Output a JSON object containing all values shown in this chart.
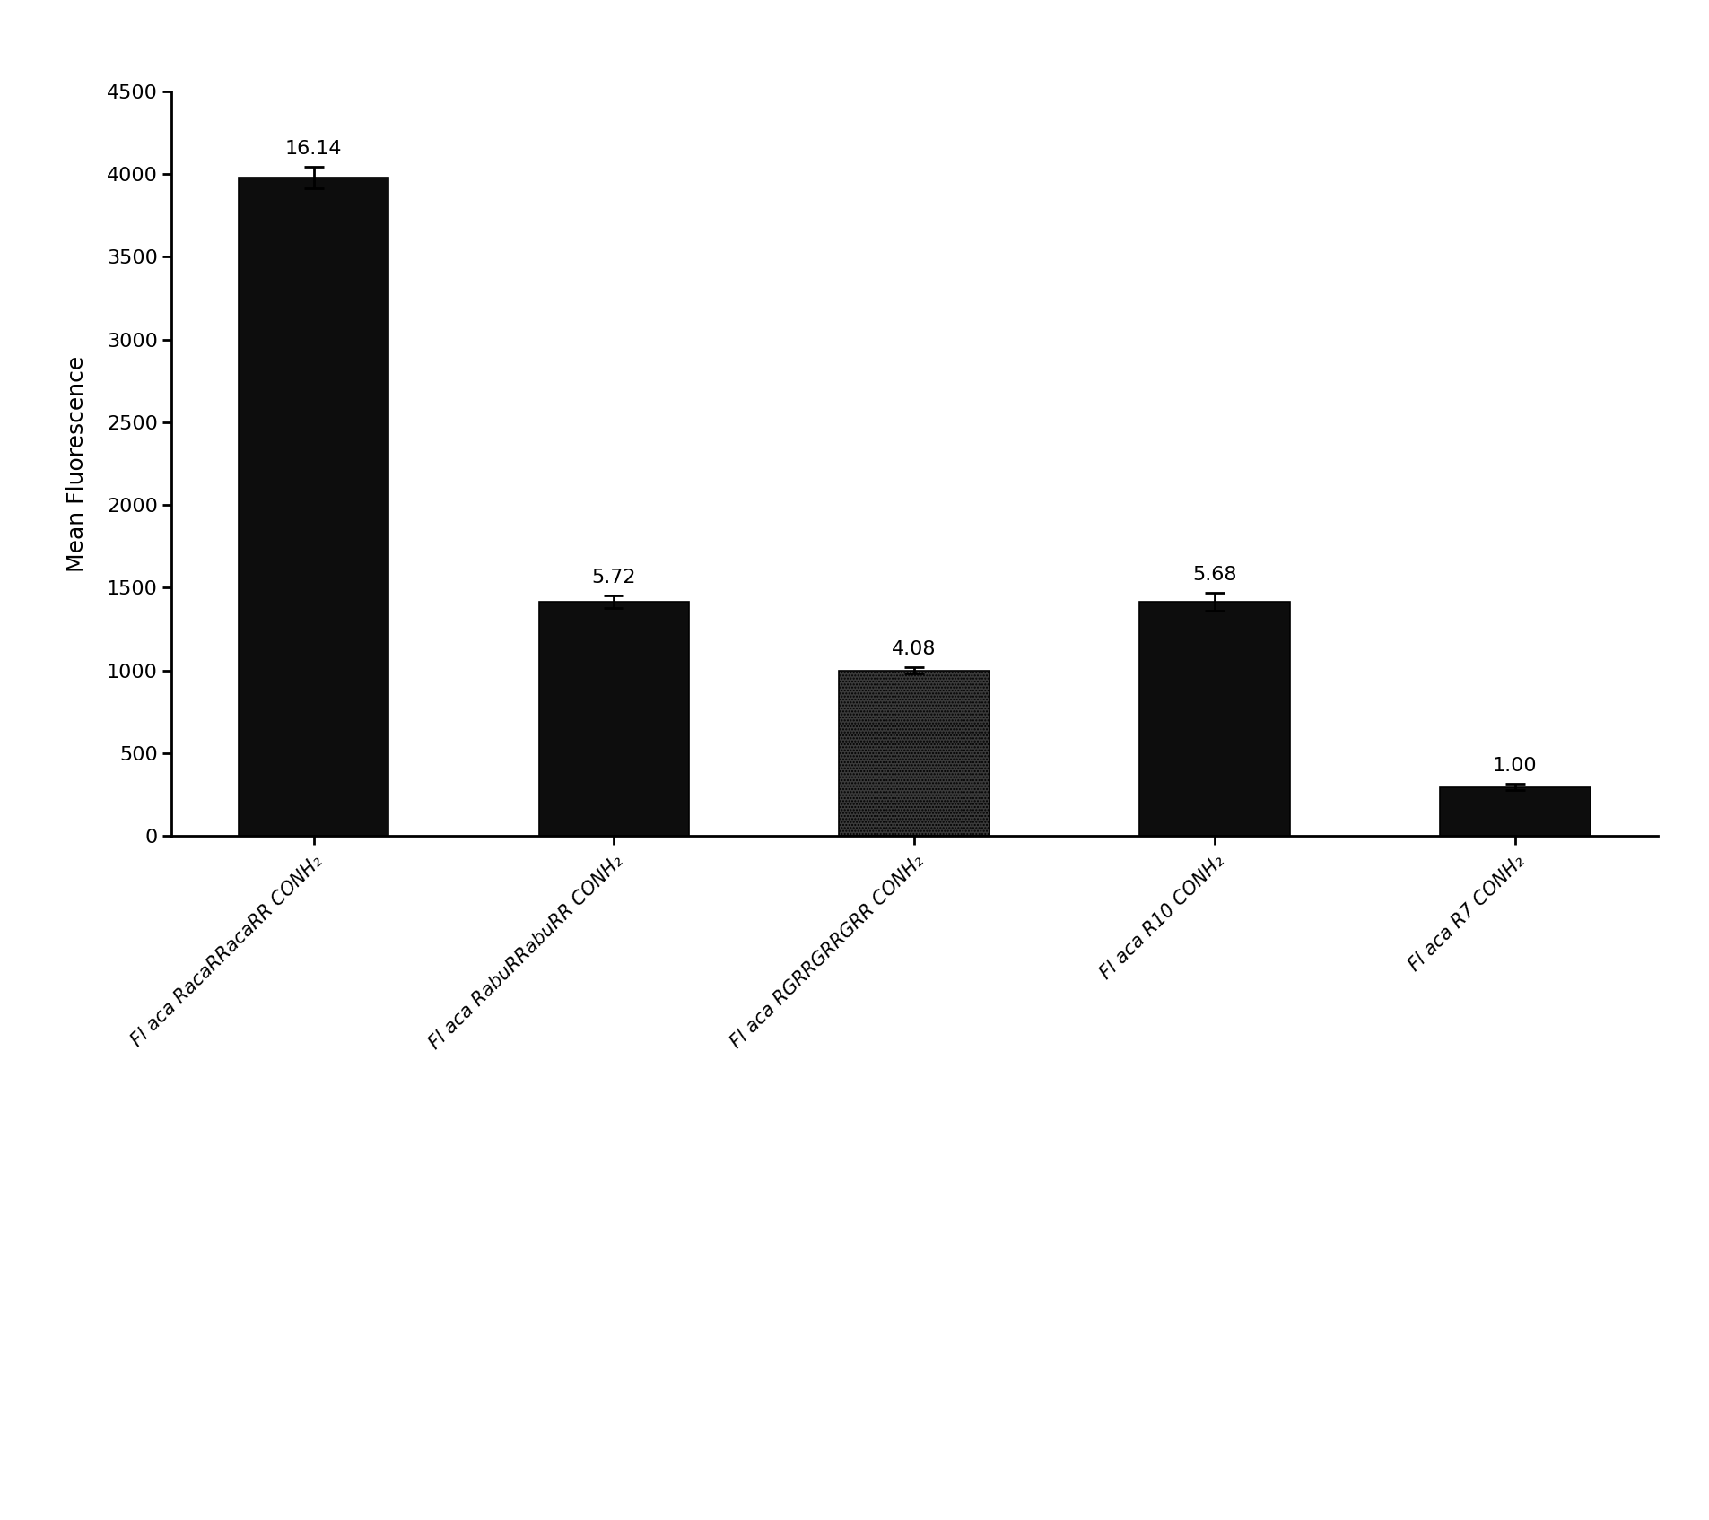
{
  "categories": [
    "Fl aca RacaRRacaRR CONH₂",
    "Fl aca RabuRRabuRR CONH₂",
    "Fl aca RGRRGRRGRR CONH₂",
    "Fl aca R10 CONH₂",
    "Fl aca R7 CONH₂"
  ],
  "values": [
    3980,
    1415,
    1000,
    1415,
    295
  ],
  "errors": [
    65,
    40,
    20,
    55,
    18
  ],
  "labels": [
    "16.14",
    "5.72",
    "4.08",
    "5.68",
    "1.00"
  ],
  "bar_colors": [
    "#0d0d0d",
    "#0d0d0d",
    "#3a3a3a",
    "#0d0d0d",
    "#0d0d0d"
  ],
  "bar_hatches": [
    null,
    null,
    ".....",
    null,
    null
  ],
  "ylabel": "Mean Fluorescence",
  "ylim": [
    0,
    4500
  ],
  "yticks": [
    0,
    500,
    1000,
    1500,
    2000,
    2500,
    3000,
    3500,
    4000,
    4500
  ],
  "background_color": "#ffffff",
  "label_fontsize": 16,
  "tick_fontsize": 16,
  "ylabel_fontsize": 18,
  "xlabel_fontsize": 15
}
